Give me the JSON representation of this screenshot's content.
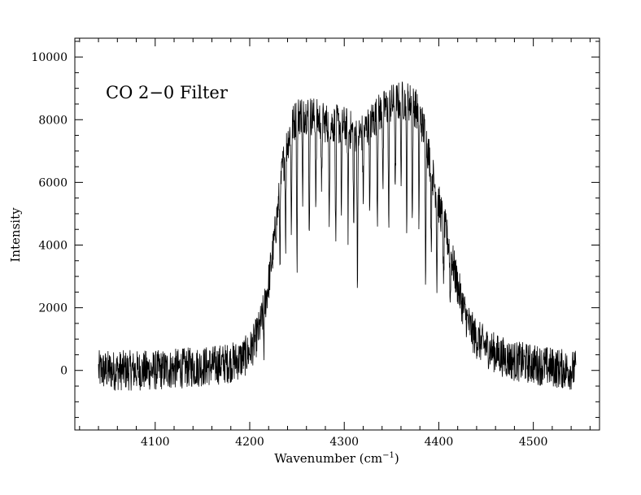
{
  "chart_data": {
    "type": "line",
    "title": "",
    "annotation": "CO 2−0 Filter",
    "xlabel_main": "Wavenumber (cm",
    "xlabel_sup": "−1",
    "xlabel_close": ")",
    "ylabel": "Intensity",
    "xlim": [
      4015,
      4570
    ],
    "ylim": [
      -1900,
      10600
    ],
    "x_ticks": [
      4100,
      4200,
      4300,
      4400,
      4500
    ],
    "x_tick_labels": [
      "4100",
      "4200",
      "4300",
      "4400",
      "4500"
    ],
    "y_ticks": [
      0,
      2000,
      4000,
      6000,
      8000,
      10000
    ],
    "y_tick_labels": [
      "0",
      "2000",
      "4000",
      "6000",
      "8000",
      "10000"
    ],
    "grid": false,
    "legend": "none",
    "line_color": "#000000",
    "series": [
      {
        "x": [
          4040,
          4060,
          4080,
          4100,
          4120,
          4140,
          4160,
          4170,
          4180,
          4190,
          4195,
          4200,
          4205,
          4210,
          4215,
          4220,
          4225,
          4230,
          4235,
          4240,
          4245,
          4250,
          4255,
          4260,
          4270,
          4280,
          4290,
          4300,
          4305,
          4310,
          4315,
          4320,
          4325,
          4330,
          4340,
          4350,
          4360,
          4365,
          4370,
          4375,
          4380,
          4385,
          4390,
          4395,
          4400,
          4405,
          4410,
          4415,
          4420,
          4425,
          4430,
          4435,
          4440,
          4450,
          4460,
          4470,
          4480,
          4490,
          4500,
          4510,
          4520,
          4530,
          4545
        ],
        "y": [
          0,
          0,
          0,
          0,
          50,
          100,
          150,
          200,
          250,
          350,
          450,
          600,
          900,
          1300,
          1900,
          2800,
          3900,
          5200,
          6500,
          7300,
          7800,
          8100,
          8200,
          8200,
          8050,
          7900,
          7850,
          7800,
          7700,
          7600,
          7500,
          7600,
          7800,
          8000,
          8300,
          8500,
          8600,
          8600,
          8550,
          8400,
          8100,
          7600,
          6800,
          6000,
          5300,
          4700,
          4100,
          3400,
          2700,
          2100,
          1600,
          1250,
          1000,
          750,
          550,
          400,
          300,
          250,
          200,
          150,
          100,
          50,
          0
        ]
      }
    ],
    "absorption_lines": [
      {
        "x": 4215,
        "depth": 1200
      },
      {
        "x": 4232,
        "depth": 2200
      },
      {
        "x": 4238,
        "depth": 3000
      },
      {
        "x": 4244,
        "depth": 3500
      },
      {
        "x": 4250,
        "depth": 5200
      },
      {
        "x": 4256,
        "depth": 3300
      },
      {
        "x": 4263,
        "depth": 4200
      },
      {
        "x": 4270,
        "depth": 3000
      },
      {
        "x": 4276,
        "depth": 2800
      },
      {
        "x": 4284,
        "depth": 3800
      },
      {
        "x": 4291,
        "depth": 4400
      },
      {
        "x": 4297,
        "depth": 3000
      },
      {
        "x": 4304,
        "depth": 3200
      },
      {
        "x": 4310,
        "depth": 3500
      },
      {
        "x": 4314,
        "depth": 5300
      },
      {
        "x": 4320,
        "depth": 2400
      },
      {
        "x": 4327,
        "depth": 3100
      },
      {
        "x": 4335,
        "depth": 3600
      },
      {
        "x": 4341,
        "depth": 2800
      },
      {
        "x": 4347,
        "depth": 4300
      },
      {
        "x": 4354,
        "depth": 3300
      },
      {
        "x": 4360,
        "depth": 2900
      },
      {
        "x": 4366,
        "depth": 4400
      },
      {
        "x": 4372,
        "depth": 4200
      },
      {
        "x": 4379,
        "depth": 3600
      },
      {
        "x": 4386,
        "depth": 4700
      },
      {
        "x": 4392,
        "depth": 2800
      },
      {
        "x": 4398,
        "depth": 3000
      },
      {
        "x": 4405,
        "depth": 2400
      },
      {
        "x": 4412,
        "depth": 1800
      }
    ],
    "noise_amplitude": 650,
    "samples": 1800
  }
}
